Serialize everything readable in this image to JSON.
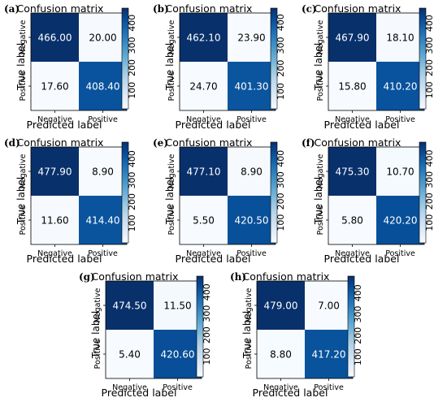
{
  "chart_data": [
    {
      "type": "heatmap",
      "panel": "(a)",
      "title": "Confusion matrix",
      "xlabel": "Predicted label",
      "ylabel": "True label",
      "x_categories": [
        "Negative",
        "Positive"
      ],
      "y_categories": [
        "Negative",
        "Positive"
      ],
      "values": [
        [
          "466.00",
          "20.00"
        ],
        [
          "17.60",
          "408.40"
        ]
      ],
      "colorbar": {
        "ticks": [
          "100",
          "200",
          "300",
          "400"
        ],
        "range": [
          17.6,
          466
        ]
      }
    },
    {
      "type": "heatmap",
      "panel": "(b)",
      "title": "Confusion matrix",
      "xlabel": "Predicted label",
      "ylabel": "True label",
      "x_categories": [
        "Negative",
        "Positive"
      ],
      "y_categories": [
        "Negative",
        "Positive"
      ],
      "values": [
        [
          "462.10",
          "23.90"
        ],
        [
          "24.70",
          "401.30"
        ]
      ],
      "colorbar": {
        "ticks": [
          "100",
          "200",
          "300",
          "400"
        ],
        "range": [
          23.9,
          462.1
        ]
      }
    },
    {
      "type": "heatmap",
      "panel": "(c)",
      "title": "Confusion matrix",
      "xlabel": "Predicted label",
      "ylabel": "True label",
      "x_categories": [
        "Negative",
        "Positive"
      ],
      "y_categories": [
        "Negative",
        "Positive"
      ],
      "values": [
        [
          "467.90",
          "18.10"
        ],
        [
          "15.80",
          "410.20"
        ]
      ],
      "colorbar": {
        "ticks": [
          "100",
          "200",
          "300",
          "400"
        ],
        "range": [
          15.8,
          467.9
        ]
      }
    },
    {
      "type": "heatmap",
      "panel": "(d)",
      "title": "Confusion matrix",
      "xlabel": "Predicted label",
      "ylabel": "True label",
      "x_categories": [
        "Negative",
        "Positive"
      ],
      "y_categories": [
        "Negative",
        "Positive"
      ],
      "values": [
        [
          "477.90",
          "8.90"
        ],
        [
          "11.60",
          "414.40"
        ]
      ],
      "colorbar": {
        "ticks": [
          "100",
          "200",
          "300",
          "400"
        ],
        "range": [
          8.9,
          477.9
        ]
      }
    },
    {
      "type": "heatmap",
      "panel": "(e)",
      "title": "Confusion matrix",
      "xlabel": "Predicted label",
      "ylabel": "True label",
      "x_categories": [
        "Negative",
        "Positive"
      ],
      "y_categories": [
        "Negative",
        "Positive"
      ],
      "values": [
        [
          "477.10",
          "8.90"
        ],
        [
          "5.50",
          "420.50"
        ]
      ],
      "colorbar": {
        "ticks": [
          "100",
          "200",
          "300",
          "400"
        ],
        "range": [
          5.5,
          477.1
        ]
      }
    },
    {
      "type": "heatmap",
      "panel": "(f)",
      "title": "Confusion matrix",
      "xlabel": "Predicted label",
      "ylabel": "True label",
      "x_categories": [
        "Negative",
        "Positive"
      ],
      "y_categories": [
        "Negative",
        "Positive"
      ],
      "values": [
        [
          "475.30",
          "10.70"
        ],
        [
          "5.80",
          "420.20"
        ]
      ],
      "colorbar": {
        "ticks": [
          "100",
          "200",
          "300",
          "400"
        ],
        "range": [
          5.8,
          475.3
        ]
      }
    },
    {
      "type": "heatmap",
      "panel": "(g)",
      "title": "Confusion matrix",
      "xlabel": "Predicted label",
      "ylabel": "True label",
      "x_categories": [
        "Negative",
        "Positive"
      ],
      "y_categories": [
        "Negative",
        "Positive"
      ],
      "values": [
        [
          "474.50",
          "11.50"
        ],
        [
          "5.40",
          "420.60"
        ]
      ],
      "colorbar": {
        "ticks": [
          "100",
          "200",
          "300",
          "400"
        ],
        "range": [
          5.4,
          474.5
        ]
      }
    },
    {
      "type": "heatmap",
      "panel": "(h)",
      "title": "Confusion matrix",
      "xlabel": "Predicted label",
      "ylabel": "True label",
      "x_categories": [
        "Negative",
        "Positive"
      ],
      "y_categories": [
        "Negative",
        "Positive"
      ],
      "values": [
        [
          "479.00",
          "7.00"
        ],
        [
          "8.80",
          "417.20"
        ]
      ],
      "colorbar": {
        "ticks": [
          "100",
          "200",
          "300",
          "400"
        ],
        "range": [
          7,
          479
        ]
      }
    }
  ],
  "colors": {
    "low": "#f7fbff",
    "mid": "#6baed6",
    "high": "#08306b"
  }
}
